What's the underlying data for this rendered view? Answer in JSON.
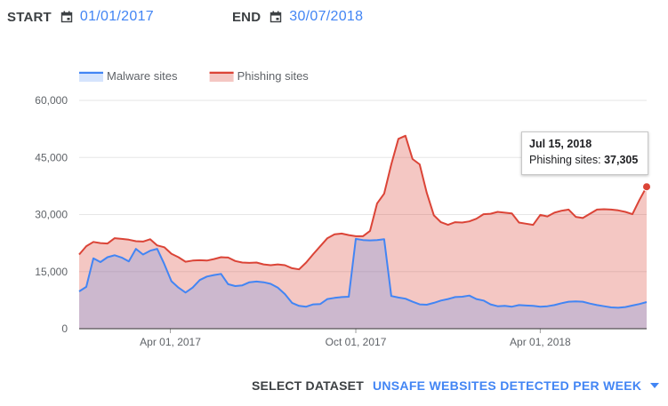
{
  "controls": {
    "start_label": "START",
    "start_date": "01/01/2017",
    "end_label": "END",
    "end_date": "30/07/2018",
    "dataset_label": "SELECT DATASET",
    "dataset_value": "UNSAFE WEBSITES DETECTED PER WEEK"
  },
  "icons": {
    "calendar": "calendar-icon",
    "dropdown": "chevron-down-icon"
  },
  "colors": {
    "malware_line": "#4285f4",
    "phishing_line": "#db4437",
    "accent": "#4285f4"
  },
  "tooltip": {
    "date": "Jul 15, 2018",
    "label": "Phishing sites:",
    "value": "37,305"
  },
  "chart_data": {
    "type": "area",
    "title": "",
    "xlabel": "",
    "ylabel": "",
    "ylim": [
      0,
      60000
    ],
    "yticks": [
      "0",
      "15,000",
      "30,000",
      "45,000",
      "60,000"
    ],
    "xticks": [
      "Apr 01, 2017",
      "Oct 01, 2017",
      "Apr 01, 2018"
    ],
    "x_range": [
      "2017-01-01",
      "2018-07-15"
    ],
    "grid": true,
    "legend_position": "top-left",
    "x": [
      "2017-01-01",
      "2017-01-08",
      "2017-01-15",
      "2017-01-22",
      "2017-01-29",
      "2017-02-05",
      "2017-02-12",
      "2017-02-19",
      "2017-02-26",
      "2017-03-05",
      "2017-03-12",
      "2017-03-19",
      "2017-03-26",
      "2017-04-02",
      "2017-04-09",
      "2017-04-16",
      "2017-04-23",
      "2017-04-30",
      "2017-05-07",
      "2017-05-14",
      "2017-05-21",
      "2017-05-28",
      "2017-06-04",
      "2017-06-11",
      "2017-06-18",
      "2017-06-25",
      "2017-07-02",
      "2017-07-09",
      "2017-07-16",
      "2017-07-23",
      "2017-07-30",
      "2017-08-06",
      "2017-08-13",
      "2017-08-20",
      "2017-08-27",
      "2017-09-03",
      "2017-09-10",
      "2017-09-17",
      "2017-09-24",
      "2017-10-01",
      "2017-10-08",
      "2017-10-15",
      "2017-10-22",
      "2017-10-29",
      "2017-11-05",
      "2017-11-12",
      "2017-11-19",
      "2017-11-26",
      "2017-12-03",
      "2017-12-10",
      "2017-12-17",
      "2017-12-24",
      "2017-12-31",
      "2018-01-07",
      "2018-01-14",
      "2018-01-21",
      "2018-01-28",
      "2018-02-04",
      "2018-02-11",
      "2018-02-18",
      "2018-02-25",
      "2018-03-04",
      "2018-03-11",
      "2018-03-18",
      "2018-03-25",
      "2018-04-01",
      "2018-04-08",
      "2018-04-15",
      "2018-04-22",
      "2018-04-29",
      "2018-05-06",
      "2018-05-13",
      "2018-05-20",
      "2018-05-27",
      "2018-06-03",
      "2018-06-10",
      "2018-06-17",
      "2018-06-24",
      "2018-07-01",
      "2018-07-08",
      "2018-07-15"
    ],
    "series": [
      {
        "name": "Malware sites",
        "color": "#4285f4",
        "values": [
          9800,
          11000,
          18500,
          17500,
          18800,
          19300,
          18700,
          17700,
          21000,
          19500,
          20500,
          21000,
          17000,
          12500,
          10800,
          9500,
          10800,
          12800,
          13700,
          14100,
          14400,
          11700,
          11200,
          11400,
          12200,
          12400,
          12200,
          11800,
          10800,
          9100,
          6800,
          6000,
          5800,
          6400,
          6500,
          7800,
          8100,
          8300,
          8400,
          23600,
          23300,
          23200,
          23300,
          23500,
          8600,
          8200,
          7900,
          7100,
          6400,
          6300,
          6800,
          7400,
          7800,
          8300,
          8400,
          8700,
          7800,
          7400,
          6400,
          5900,
          6000,
          5800,
          6200,
          6100,
          6000,
          5800,
          5900,
          6200,
          6700,
          7100,
          7200,
          7100,
          6600,
          6200,
          5900,
          5600,
          5500,
          5700,
          6100,
          6500,
          7000
        ]
      },
      {
        "name": "Phishing sites",
        "color": "#db4437",
        "values": [
          19500,
          21700,
          22800,
          22500,
          22400,
          23800,
          23600,
          23400,
          23000,
          22900,
          23500,
          21900,
          21400,
          19700,
          18800,
          17600,
          17900,
          18000,
          17900,
          18300,
          18800,
          18700,
          17800,
          17400,
          17300,
          17400,
          16900,
          16700,
          16900,
          16700,
          15900,
          15600,
          17400,
          19600,
          21700,
          23800,
          24800,
          25000,
          24600,
          24300,
          24300,
          25700,
          32900,
          35500,
          43200,
          49900,
          50700,
          44600,
          43200,
          35700,
          29800,
          28000,
          27300,
          28000,
          27900,
          28200,
          28900,
          30100,
          30200,
          30700,
          30500,
          30300,
          27900,
          27600,
          27300,
          29900,
          29500,
          30500,
          31000,
          31300,
          29400,
          29100,
          30200,
          31300,
          31400,
          31300,
          31100,
          30700,
          30100,
          33900,
          37305
        ]
      }
    ]
  }
}
